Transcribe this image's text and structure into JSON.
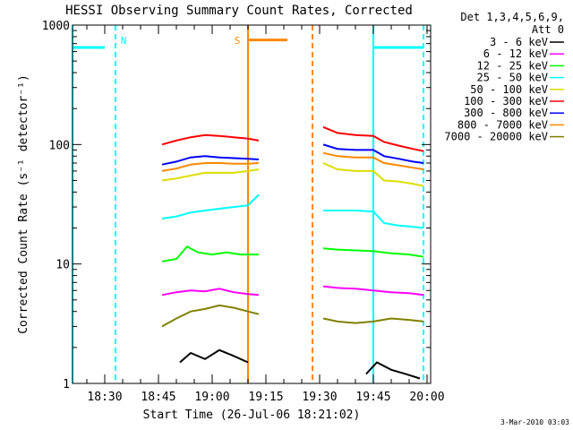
{
  "chart_data": {
    "type": "line",
    "title": "HESSI Observing Summary Count Rates, Corrected",
    "xlabel": "Start Time (26-Jul-06 18:21:02)",
    "ylabel": "Corrected Count Rate (s⁻¹ detector⁻¹)",
    "yscale": "log",
    "ylim": [
      1,
      1000
    ],
    "xlim": [
      "18:21",
      "20:01"
    ],
    "x_ticks": [
      "18:30",
      "18:45",
      "19:00",
      "19:15",
      "19:30",
      "19:45",
      "20:00"
    ],
    "y_ticks": [
      "1",
      "10",
      "100",
      "1000"
    ],
    "grid": false,
    "legend_header": [
      "Det 1,3,4,5,6,9,",
      "Att 0"
    ],
    "legend_position": "right",
    "footer_date": "3-Mar-2010 03:03",
    "series": [
      {
        "name": "3 - 6 keV",
        "color": "#000000",
        "segments": [
          {
            "x": [
              "18:51",
              "18:54",
              "18:58",
              "19:02",
              "19:06",
              "19:10"
            ],
            "y": [
              1.5,
              1.8,
              1.6,
              1.9,
              1.7,
              1.5
            ]
          },
          {
            "x": [
              "19:43",
              "19:46",
              "19:50",
              "19:54",
              "19:58"
            ],
            "y": [
              1.2,
              1.5,
              1.3,
              1.2,
              1.1
            ]
          }
        ]
      },
      {
        "name": "6 - 12 keV",
        "color": "#ff00ff",
        "segments": [
          {
            "x": [
              "18:46",
              "18:50",
              "18:54",
              "18:58",
              "19:02",
              "19:06",
              "19:10",
              "19:13"
            ],
            "y": [
              5.5,
              5.8,
              6.0,
              5.9,
              6.2,
              5.8,
              5.6,
              5.5
            ]
          },
          {
            "x": [
              "19:31",
              "19:35",
              "19:40",
              "19:45",
              "19:50",
              "19:55",
              "19:59"
            ],
            "y": [
              6.5,
              6.3,
              6.2,
              6.0,
              5.8,
              5.7,
              5.5
            ]
          }
        ]
      },
      {
        "name": "12 - 25 keV",
        "color": "#00ff00",
        "segments": [
          {
            "x": [
              "18:46",
              "18:50",
              "18:53",
              "18:56",
              "19:00",
              "19:04",
              "19:08",
              "19:13"
            ],
            "y": [
              10.5,
              11.0,
              14.0,
              12.5,
              12.0,
              12.5,
              12.0,
              12.0
            ]
          },
          {
            "x": [
              "19:31",
              "19:35",
              "19:40",
              "19:45",
              "19:50",
              "19:55",
              "19:59"
            ],
            "y": [
              13.5,
              13.2,
              13.0,
              12.8,
              12.3,
              12.0,
              11.5
            ]
          }
        ]
      },
      {
        "name": "25 - 50 keV",
        "color": "#00ffff",
        "segments": [
          {
            "x": [
              "18:46",
              "18:50",
              "18:54",
              "18:58",
              "19:02",
              "19:06",
              "19:10",
              "19:13"
            ],
            "y": [
              24.0,
              25.0,
              27.0,
              28.0,
              29.0,
              30.0,
              31.0,
              38.0
            ]
          },
          {
            "x": [
              "19:31",
              "19:35",
              "19:40",
              "19:45",
              "19:48",
              "19:52",
              "19:56",
              "19:59"
            ],
            "y": [
              28.0,
              28.0,
              28.0,
              27.5,
              22.0,
              21.0,
              20.5,
              20.0
            ]
          }
        ]
      },
      {
        "name": "50 - 100 keV",
        "color": "#dddd00",
        "segments": [
          {
            "x": [
              "18:46",
              "18:50",
              "18:54",
              "18:58",
              "19:02",
              "19:06",
              "19:10",
              "19:13"
            ],
            "y": [
              50.0,
              52.0,
              55.0,
              58.0,
              58.0,
              58.0,
              60.0,
              62.0
            ]
          },
          {
            "x": [
              "19:31",
              "19:35",
              "19:40",
              "19:45",
              "19:48",
              "19:52",
              "19:56",
              "19:59"
            ],
            "y": [
              70.0,
              62.0,
              60.0,
              60.0,
              50.0,
              49.0,
              47.0,
              45.0
            ]
          }
        ]
      },
      {
        "name": "100 - 300 keV",
        "color": "#ff0000",
        "segments": [
          {
            "x": [
              "18:46",
              "18:50",
              "18:54",
              "18:58",
              "19:02",
              "19:06",
              "19:10",
              "19:13"
            ],
            "y": [
              100.0,
              108.0,
              115.0,
              120.0,
              118.0,
              115.0,
              112.0,
              108.0
            ]
          },
          {
            "x": [
              "19:31",
              "19:35",
              "19:40",
              "19:45",
              "19:48",
              "19:52",
              "19:56",
              "19:59"
            ],
            "y": [
              140.0,
              125.0,
              120.0,
              118.0,
              105.0,
              98.0,
              92.0,
              88.0
            ]
          }
        ]
      },
      {
        "name": "300 - 800 keV",
        "color": "#0000ff",
        "segments": [
          {
            "x": [
              "18:46",
              "18:50",
              "18:54",
              "18:58",
              "19:02",
              "19:06",
              "19:10",
              "19:13"
            ],
            "y": [
              68.0,
              72.0,
              78.0,
              80.0,
              78.0,
              77.0,
              76.0,
              75.0
            ]
          },
          {
            "x": [
              "19:31",
              "19:35",
              "19:40",
              "19:45",
              "19:48",
              "19:52",
              "19:56",
              "19:59"
            ],
            "y": [
              100.0,
              92.0,
              90.0,
              90.0,
              80.0,
              76.0,
              72.0,
              70.0
            ]
          }
        ]
      },
      {
        "name": "800 - 7000 keV",
        "color": "#ff8800",
        "segments": [
          {
            "x": [
              "18:46",
              "18:50",
              "18:54",
              "18:58",
              "19:02",
              "19:06",
              "19:10",
              "19:13"
            ],
            "y": [
              60.0,
              63.0,
              68.0,
              70.0,
              70.0,
              69.0,
              69.0,
              70.0
            ]
          },
          {
            "x": [
              "19:31",
              "19:35",
              "19:40",
              "19:45",
              "19:48",
              "19:52",
              "19:56",
              "19:59"
            ],
            "y": [
              85.0,
              80.0,
              78.0,
              78.0,
              70.0,
              67.0,
              64.0,
              62.0
            ]
          }
        ]
      },
      {
        "name": "7000 - 20000 keV",
        "color": "#808000",
        "segments": [
          {
            "x": [
              "18:46",
              "18:50",
              "18:54",
              "18:58",
              "19:02",
              "19:06",
              "19:10",
              "19:13"
            ],
            "y": [
              3.0,
              3.5,
              4.0,
              4.2,
              4.5,
              4.3,
              4.0,
              3.8
            ]
          },
          {
            "x": [
              "19:31",
              "19:35",
              "19:40",
              "19:45",
              "19:50",
              "19:55",
              "19:59"
            ],
            "y": [
              3.5,
              3.3,
              3.2,
              3.3,
              3.5,
              3.4,
              3.3
            ]
          }
        ]
      }
    ],
    "annotations": [
      {
        "label": "N",
        "color": "#00ffff",
        "vlines": [
          "18:21",
          "18:33"
        ],
        "bar": {
          "from": "18:21",
          "to": "18:30",
          "y": 650
        }
      },
      {
        "label": "",
        "color": "#00ffff",
        "vlines": [
          "19:45",
          "19:59"
        ],
        "bar": {
          "from": "19:45",
          "to": "19:59",
          "y": 650
        }
      },
      {
        "label": "S",
        "color": "#ff8800",
        "vlines": [
          "19:10",
          "19:28"
        ],
        "bar": {
          "from": "19:10",
          "to": "19:21",
          "y": 750
        }
      }
    ]
  }
}
